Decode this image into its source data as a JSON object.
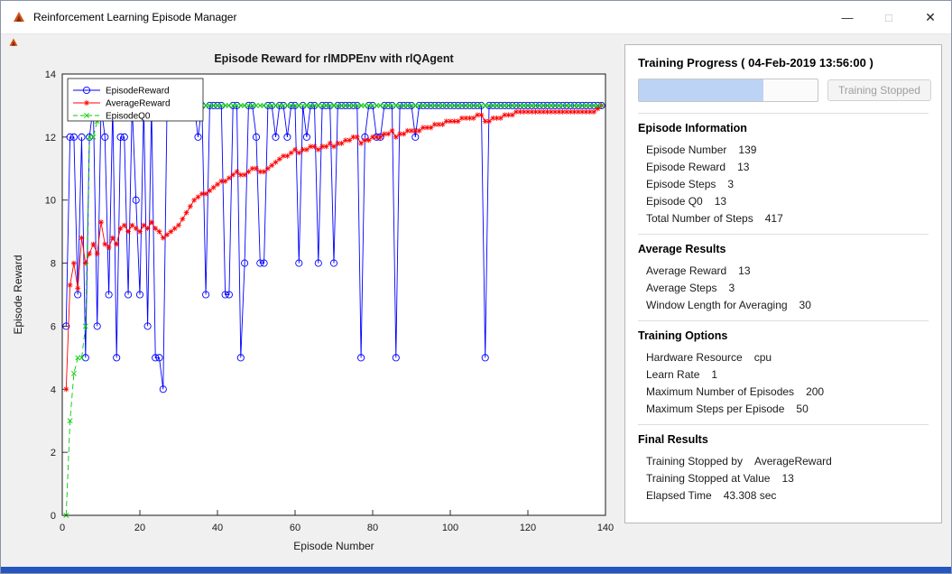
{
  "window": {
    "title": "Reinforcement Learning Episode Manager",
    "minimize_glyph": "—",
    "maximize_glyph": "□",
    "close_glyph": "✕",
    "icon_color": "#d95319"
  },
  "chart_data": {
    "type": "line",
    "title": "Episode Reward for rlMDPEnv with rlQAgent",
    "xlabel": "Episode Number",
    "ylabel": "Episode Reward",
    "xlim": [
      0,
      140
    ],
    "ylim": [
      0,
      14
    ],
    "xticks": [
      0,
      20,
      40,
      60,
      80,
      100,
      120,
      140
    ],
    "yticks": [
      0,
      2,
      4,
      6,
      8,
      10,
      12,
      14
    ],
    "grid": false,
    "legend_position": "top-left",
    "x_start": 1,
    "series": [
      {
        "name": "EpisodeReward",
        "color": "#0000ff",
        "line": "solid",
        "marker": "circle",
        "values": [
          6,
          12,
          12,
          7,
          12,
          5,
          12,
          13,
          6,
          13,
          12,
          7,
          13,
          5,
          12,
          12,
          7,
          13,
          10,
          7,
          13,
          6,
          13,
          5,
          5,
          4,
          13,
          13,
          13,
          13,
          13,
          13,
          13,
          13,
          12,
          13,
          7,
          13,
          13,
          13,
          13,
          7,
          7,
          13,
          13,
          5,
          8,
          13,
          13,
          12,
          8,
          8,
          13,
          13,
          12,
          13,
          13,
          12,
          13,
          13,
          8,
          13,
          12,
          13,
          13,
          8,
          13,
          13,
          13,
          8,
          13,
          13,
          13,
          13,
          13,
          13,
          5,
          12,
          13,
          13,
          12,
          12,
          13,
          13,
          13,
          5,
          13,
          13,
          13,
          13,
          12,
          13,
          13,
          13,
          13,
          13,
          13,
          13,
          13,
          13,
          13,
          13,
          13,
          13,
          13,
          13,
          13,
          13,
          5,
          13,
          13,
          13,
          13,
          13,
          13,
          13,
          13,
          13,
          13,
          13,
          13,
          13,
          13,
          13,
          13,
          13,
          13,
          13,
          13,
          13,
          13,
          13,
          13,
          13,
          13,
          13,
          13,
          13,
          13
        ]
      },
      {
        "name": "AverageReward",
        "color": "#ff0000",
        "line": "solid",
        "marker": "asterisk",
        "values": [
          4,
          7.3,
          8,
          7.2,
          8.8,
          8,
          8.3,
          8.6,
          8.3,
          9.3,
          8.6,
          8.5,
          8.8,
          8.6,
          9.1,
          9.2,
          9,
          9.2,
          9.1,
          9,
          9.2,
          9.1,
          9.3,
          9.1,
          9,
          8.8,
          8.9,
          9,
          9.1,
          9.2,
          9.4,
          9.6,
          9.8,
          10,
          10.1,
          10.2,
          10.2,
          10.3,
          10.4,
          10.5,
          10.6,
          10.6,
          10.7,
          10.8,
          10.9,
          10.8,
          10.8,
          10.9,
          11,
          11,
          10.9,
          10.9,
          11,
          11.1,
          11.2,
          11.3,
          11.4,
          11.4,
          11.5,
          11.6,
          11.5,
          11.6,
          11.6,
          11.7,
          11.7,
          11.6,
          11.7,
          11.7,
          11.8,
          11.7,
          11.8,
          11.8,
          11.9,
          11.9,
          12,
          12,
          11.8,
          11.9,
          11.9,
          12,
          12,
          12,
          12.1,
          12.1,
          12.2,
          12,
          12.1,
          12.1,
          12.2,
          12.2,
          12.2,
          12.2,
          12.3,
          12.3,
          12.3,
          12.4,
          12.4,
          12.4,
          12.5,
          12.5,
          12.5,
          12.5,
          12.6,
          12.6,
          12.6,
          12.6,
          12.7,
          12.7,
          12.5,
          12.5,
          12.6,
          12.6,
          12.6,
          12.7,
          12.7,
          12.7,
          12.8,
          12.8,
          12.8,
          12.8,
          12.8,
          12.8,
          12.8,
          12.8,
          12.8,
          12.8,
          12.8,
          12.8,
          12.8,
          12.8,
          12.8,
          12.8,
          12.8,
          12.8,
          12.8,
          12.8,
          12.8,
          12.9,
          13
        ]
      },
      {
        "name": "EpisodeQ0",
        "color": "#00cc00",
        "line": "dashed",
        "marker": "x",
        "values": [
          0,
          3,
          4.5,
          5,
          5,
          6,
          12,
          12,
          12.5,
          13,
          13,
          13,
          13,
          13,
          13,
          13,
          13,
          13,
          13,
          13,
          13,
          13,
          13,
          13,
          13,
          13,
          13,
          13,
          13,
          13,
          13,
          13,
          13,
          13,
          13,
          13,
          13,
          13,
          13,
          13,
          13,
          13,
          13,
          13,
          13,
          13,
          13,
          13,
          13,
          13,
          13,
          13,
          13,
          13,
          13,
          13,
          13,
          13,
          13,
          13,
          13,
          13,
          13,
          13,
          13,
          13,
          13,
          13,
          13,
          13,
          13,
          13,
          13,
          13,
          13,
          13,
          13,
          13,
          13,
          13,
          13,
          13,
          13,
          13,
          13,
          13,
          13,
          13,
          13,
          13,
          13,
          13,
          13,
          13,
          13,
          13,
          13,
          13,
          13,
          13,
          13,
          13,
          13,
          13,
          13,
          13,
          13,
          13,
          13,
          13,
          13,
          13,
          13,
          13,
          13,
          13,
          13,
          13,
          13,
          13,
          13,
          13,
          13,
          13,
          13,
          13,
          13,
          13,
          13,
          13,
          13,
          13,
          13,
          13,
          13,
          13,
          13,
          13,
          13
        ]
      }
    ]
  },
  "panel": {
    "header": "Training Progress ( 04-Feb-2019 13:56:00 )",
    "progress_percent": 69.5,
    "progress_fill_color": "#bdd3f5",
    "stop_button_label": "Training Stopped",
    "sections": [
      {
        "heading": "Episode Information",
        "rows": [
          {
            "label": "Episode Number",
            "value": "139"
          },
          {
            "label": "Episode Reward",
            "value": "13"
          },
          {
            "label": "Episode Steps",
            "value": "3"
          },
          {
            "label": "Episode Q0",
            "value": "13"
          },
          {
            "label": "Total Number of Steps",
            "value": "417"
          }
        ]
      },
      {
        "heading": "Average Results",
        "rows": [
          {
            "label": "Average Reward",
            "value": "13"
          },
          {
            "label": "Average Steps",
            "value": "3"
          },
          {
            "label": "Window Length for Averaging",
            "value": "30"
          }
        ]
      },
      {
        "heading": "Training Options",
        "rows": [
          {
            "label": "Hardware Resource",
            "value": "cpu"
          },
          {
            "label": "Learn Rate",
            "value": "1"
          },
          {
            "label": "Maximum Number of Episodes",
            "value": "200"
          },
          {
            "label": "Maximum Steps per Episode",
            "value": "50"
          }
        ]
      },
      {
        "heading": "Final Results",
        "rows": [
          {
            "label": "Training Stopped by",
            "value": "AverageReward"
          },
          {
            "label": "Training Stopped at Value",
            "value": "13"
          },
          {
            "label": "Elapsed Time",
            "value": "43.308 sec"
          }
        ]
      }
    ]
  }
}
